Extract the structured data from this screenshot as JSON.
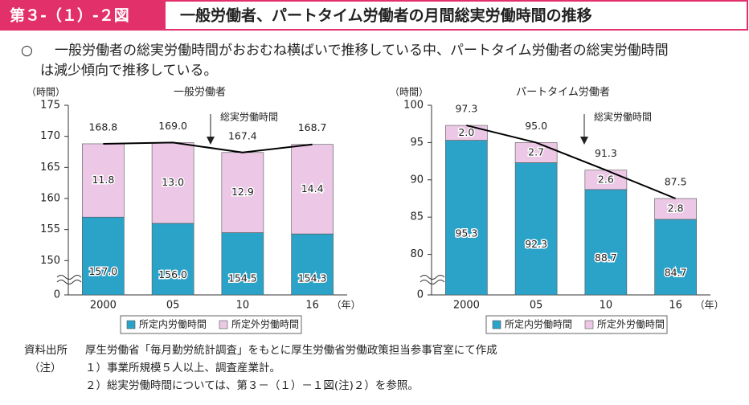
{
  "header": {
    "label": "第３-（１）-２図",
    "title": "一般労働者、パートタイム労働者の月間総実労働時間の推移"
  },
  "summary": {
    "bullet": "○",
    "lines": [
      "一般労働者の総実労働時間がおおむね横ばいで推移している中、パートタイム労働者の総実労働時間",
      "は減少傾向で推移している。"
    ]
  },
  "chart_data": [
    {
      "type": "bar",
      "stacked": true,
      "title": "一般労働者",
      "ylabel": "（時間）",
      "xlabel": "（年）",
      "categories": [
        "2000",
        "05",
        "10",
        "16"
      ],
      "ylim": [
        0,
        175
      ],
      "ybreak": [
        0,
        145
      ],
      "yticks": [
        0,
        150,
        155,
        160,
        165,
        170,
        175
      ],
      "series": [
        {
          "name": "所定内労働時間",
          "color": "#2ba3c9",
          "values": [
            157.0,
            156.0,
            154.5,
            154.3
          ],
          "value_labels": [
            "157.0",
            "156.0",
            "154.5",
            "154.3"
          ]
        },
        {
          "name": "所定外労働時間",
          "color": "#ecc8e6",
          "values": [
            11.8,
            13.0,
            12.9,
            14.4
          ],
          "value_labels": [
            "11.8",
            "13.0",
            "12.9",
            "14.4"
          ]
        },
        {
          "name": "総実労働時間",
          "type": "line",
          "color": "#000000",
          "values": [
            168.8,
            169.0,
            167.4,
            168.7
          ],
          "value_labels": [
            "168.8",
            "169.0",
            "167.4",
            "168.7"
          ]
        }
      ]
    },
    {
      "type": "bar",
      "stacked": true,
      "title": "パートタイム労働者",
      "ylabel": "（時間）",
      "xlabel": "（年）",
      "categories": [
        "2000",
        "05",
        "10",
        "16"
      ],
      "ylim": [
        0,
        100
      ],
      "ybreak": [
        0,
        75
      ],
      "yticks": [
        0,
        80,
        85,
        90,
        95,
        100
      ],
      "series": [
        {
          "name": "所定内労働時間",
          "color": "#2ba3c9",
          "values": [
            95.3,
            92.3,
            88.7,
            84.7
          ],
          "value_labels": [
            "95.3",
            "92.3",
            "88.7",
            "84.7"
          ]
        },
        {
          "name": "所定外労働時間",
          "color": "#ecc8e6",
          "values": [
            2.0,
            2.7,
            2.6,
            2.8
          ],
          "value_labels": [
            "2.0",
            "2.7",
            "2.6",
            "2.8"
          ]
        },
        {
          "name": "総実労働時間",
          "type": "line",
          "color": "#000000",
          "values": [
            97.3,
            95.0,
            91.3,
            87.5
          ],
          "value_labels": [
            "97.3",
            "95.0",
            "91.3",
            "87.5"
          ]
        }
      ]
    }
  ],
  "notes": {
    "source_label": "資料出所",
    "source": "厚生労働省「毎月勤労統計調査」をもとに厚生労働省労働政策担当参事官室にて作成",
    "notes_label": "（注）",
    "items": [
      "１）事業所規模５人以上、調査産業計。",
      "２）総実労働時間については、第３－（１）－１図(注)２）を参照。"
    ]
  }
}
